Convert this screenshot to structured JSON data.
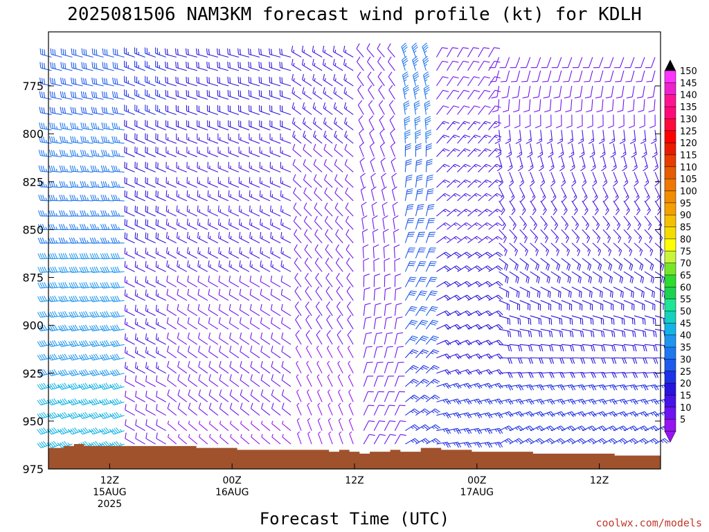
{
  "chart_data": {
    "type": "wind-barb-profile",
    "title": "2025081506 NAM3KM forecast wind profile (kt) for KDLH",
    "xlabel": "Forecast Time (UTC)",
    "credit": "coolwx.com/models",
    "y_axis": {
      "ticks": [
        "775",
        "800",
        "825",
        "850",
        "875",
        "900",
        "925",
        "950",
        "975"
      ],
      "ylim": [
        752,
        975
      ],
      "inverted": true
    },
    "x_axis": {
      "forecast_hours_range": [
        0,
        60
      ],
      "ticks": [
        {
          "hour": 6,
          "line1": "12Z",
          "line2": "15AUG",
          "line3": "2025"
        },
        {
          "hour": 18,
          "line1": "00Z",
          "line2": "16AUG",
          "line3": ""
        },
        {
          "hour": 30,
          "line1": "12Z",
          "line2": "",
          "line3": ""
        },
        {
          "hour": 42,
          "line1": "00Z",
          "line2": "17AUG",
          "line3": ""
        },
        {
          "hour": 54,
          "line1": "12Z",
          "line2": "",
          "line3": ""
        }
      ]
    },
    "colorbar": {
      "labels": [
        "150",
        "145",
        "140",
        "135",
        "130",
        "125",
        "120",
        "115",
        "110",
        "105",
        "100",
        "95",
        "90",
        "85",
        "80",
        "75",
        "70",
        "65",
        "60",
        "55",
        "50",
        "45",
        "40",
        "35",
        "30",
        "25",
        "20",
        "15",
        "10",
        "5"
      ],
      "colors": [
        "#ff33ff",
        "#ee22cc",
        "#ff1493",
        "#ff0a78",
        "#ff0a3c",
        "#ff0000",
        "#e81a00",
        "#e83c00",
        "#e65c00",
        "#ef7800",
        "#f28c00",
        "#f5a000",
        "#f5c000",
        "#f5dc00",
        "#ffff00",
        "#c8f53c",
        "#78e628",
        "#2ddc2d",
        "#1ed250",
        "#1ee696",
        "#14d2be",
        "#14b4e6",
        "#1e96f0",
        "#1e78f0",
        "#1e5aeb",
        "#1e32e6",
        "#2814dc",
        "#4614e6",
        "#6e14f0",
        "#9614f0"
      ]
    },
    "terrain": {
      "color": "#a0522d",
      "surface_pressure": [
        {
          "hour": 0,
          "p": 964
        },
        {
          "hour": 1,
          "p": 964
        },
        {
          "hour": 2,
          "p": 963
        },
        {
          "hour": 3,
          "p": 962
        },
        {
          "hour": 4,
          "p": 963
        },
        {
          "hour": 5,
          "p": 963
        },
        {
          "hour": 6,
          "p": 963
        },
        {
          "hour": 7,
          "p": 963
        },
        {
          "hour": 8,
          "p": 963
        },
        {
          "hour": 9,
          "p": 963
        },
        {
          "hour": 10,
          "p": 963
        },
        {
          "hour": 11,
          "p": 963
        },
        {
          "hour": 12,
          "p": 963
        },
        {
          "hour": 13,
          "p": 963
        },
        {
          "hour": 14,
          "p": 963
        },
        {
          "hour": 15,
          "p": 964
        },
        {
          "hour": 16,
          "p": 964
        },
        {
          "hour": 17,
          "p": 964
        },
        {
          "hour": 18,
          "p": 964
        },
        {
          "hour": 19,
          "p": 965
        },
        {
          "hour": 20,
          "p": 965
        },
        {
          "hour": 21,
          "p": 965
        },
        {
          "hour": 22,
          "p": 965
        },
        {
          "hour": 23,
          "p": 965
        },
        {
          "hour": 24,
          "p": 965
        },
        {
          "hour": 25,
          "p": 965
        },
        {
          "hour": 26,
          "p": 965
        },
        {
          "hour": 27,
          "p": 965
        },
        {
          "hour": 28,
          "p": 966
        },
        {
          "hour": 29,
          "p": 965
        },
        {
          "hour": 30,
          "p": 966
        },
        {
          "hour": 31,
          "p": 967
        },
        {
          "hour": 32,
          "p": 966
        },
        {
          "hour": 33,
          "p": 966
        },
        {
          "hour": 34,
          "p": 965
        },
        {
          "hour": 35,
          "p": 966
        },
        {
          "hour": 36,
          "p": 966
        },
        {
          "hour": 37,
          "p": 964
        },
        {
          "hour": 38,
          "p": 964
        },
        {
          "hour": 39,
          "p": 965
        },
        {
          "hour": 40,
          "p": 965
        },
        {
          "hour": 41,
          "p": 965
        },
        {
          "hour": 42,
          "p": 966
        },
        {
          "hour": 43,
          "p": 966
        },
        {
          "hour": 44,
          "p": 966
        },
        {
          "hour": 45,
          "p": 966
        },
        {
          "hour": 46,
          "p": 966
        },
        {
          "hour": 47,
          "p": 966
        },
        {
          "hour": 48,
          "p": 967
        },
        {
          "hour": 49,
          "p": 967
        },
        {
          "hour": 50,
          "p": 967
        },
        {
          "hour": 51,
          "p": 967
        },
        {
          "hour": 52,
          "p": 967
        },
        {
          "hour": 53,
          "p": 967
        },
        {
          "hour": 54,
          "p": 967
        },
        {
          "hour": 55,
          "p": 967
        },
        {
          "hour": 56,
          "p": 968
        },
        {
          "hour": 57,
          "p": 968
        },
        {
          "hour": 58,
          "p": 968
        },
        {
          "hour": 59,
          "p": 968
        },
        {
          "hour": 60,
          "p": 968
        }
      ]
    },
    "pressure_levels": [
      760,
      767,
      775,
      782,
      790,
      798,
      805,
      812,
      820,
      828,
      835,
      843,
      850,
      857,
      865,
      872,
      880,
      887,
      895,
      902,
      910,
      917,
      925,
      932,
      940,
      947,
      955,
      962
    ],
    "wind_segments": [
      {
        "h0": 0,
        "h1": 8,
        "p_top": 760,
        "p_bot": 962,
        "dir_top": 285,
        "dir_bot": 250,
        "spd_top": 30,
        "spd_bot": 45
      },
      {
        "h0": 8,
        "h1": 12,
        "p_top": 760,
        "p_bot": 962,
        "dir_top": 290,
        "dir_bot": 300,
        "spd_top": 25,
        "spd_bot": 10
      },
      {
        "h0": 12,
        "h1": 24,
        "p_top": 760,
        "p_bot": 962,
        "dir_top": 285,
        "dir_bot": 310,
        "spd_top": 20,
        "spd_bot": 7
      },
      {
        "h0": 24,
        "h1": 30,
        "p_top": 760,
        "p_bot": 962,
        "dir_top": 300,
        "dir_bot": 340,
        "spd_top": 15,
        "spd_bot": 5
      },
      {
        "h0": 30,
        "h1": 34,
        "p_top": 760,
        "p_bot": 962,
        "dir_top": 320,
        "dir_bot": 30,
        "spd_top": 10,
        "spd_bot": 10
      },
      {
        "h0": 34,
        "h1": 38,
        "p_top": 760,
        "p_bot": 962,
        "dir_top": 340,
        "dir_bot": 60,
        "spd_top": 35,
        "spd_bot": 25
      },
      {
        "h0": 38,
        "h1": 44,
        "p_top": 760,
        "p_bot": 962,
        "dir_top": 30,
        "dir_bot": 80,
        "spd_top": 10,
        "spd_bot": 25
      },
      {
        "h0": 44,
        "h1": 60,
        "p_top": 760,
        "p_bot": 962,
        "dir_top": 200,
        "dir_bot": 60,
        "spd_top": 10,
        "spd_bot": 25
      }
    ]
  }
}
